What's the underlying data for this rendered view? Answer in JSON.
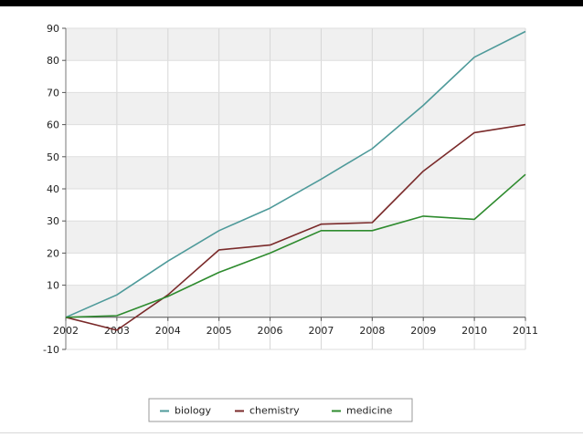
{
  "chart_data": {
    "type": "line",
    "title": "",
    "xlabel": "",
    "ylabel": "",
    "x": [
      "2002",
      "2003",
      "2004",
      "2005",
      "2006",
      "2007",
      "2008",
      "2009",
      "2010",
      "2011"
    ],
    "y_ticks": [
      "-10",
      "10",
      "20",
      "30",
      "40",
      "50",
      "60",
      "70",
      "80",
      "90"
    ],
    "ylim": [
      -10,
      90
    ],
    "grid": true,
    "legend_position": "bottom",
    "series": [
      {
        "name": "biology",
        "color": "#4e9a9a",
        "values": [
          0,
          7,
          17.5,
          27,
          34,
          43,
          52.5,
          66,
          81,
          89
        ]
      },
      {
        "name": "chemistry",
        "color": "#7a2a2a",
        "values": [
          0,
          -4,
          7,
          21,
          22.5,
          29,
          29.5,
          45.5,
          57.5,
          60
        ]
      },
      {
        "name": "medicine",
        "color": "#2e8b2e",
        "values": [
          0,
          0.5,
          6.5,
          14,
          20,
          27,
          27,
          31.5,
          30.5,
          44.5
        ]
      }
    ]
  }
}
